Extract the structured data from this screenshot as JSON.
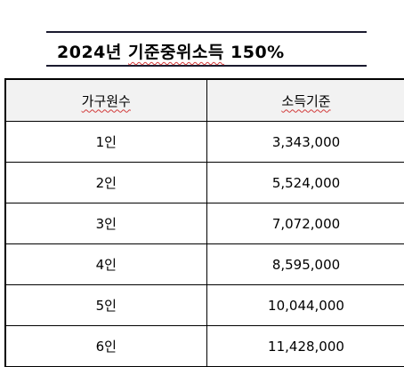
{
  "title": {
    "year": "2024년",
    "name": "기준중위소득",
    "percent": "150%"
  },
  "table": {
    "headers": [
      "가구원수",
      "소득기준"
    ],
    "rows": [
      {
        "household": "1인",
        "income": "3,343,000"
      },
      {
        "household": "2인",
        "income": "5,524,000"
      },
      {
        "household": "3인",
        "income": "7,072,000"
      },
      {
        "household": "4인",
        "income": "8,595,000"
      },
      {
        "household": "5인",
        "income": "10,044,000"
      },
      {
        "household": "6인",
        "income": "11,428,000"
      }
    ]
  }
}
